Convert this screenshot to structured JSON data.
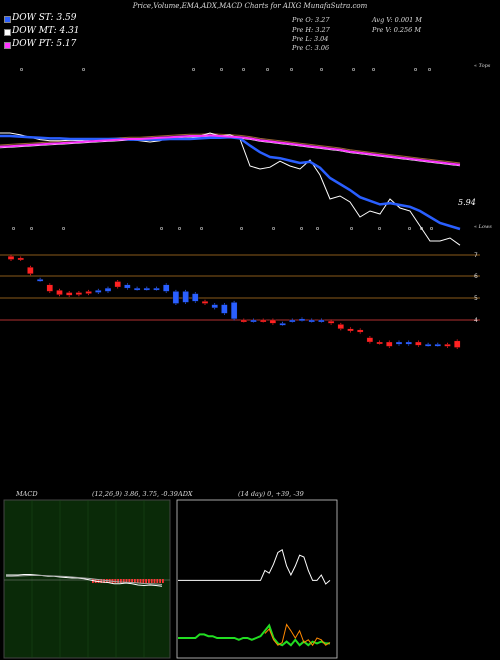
{
  "header": "Price,Volume,EMA,ADX,MACD Charts for AIXG MunafaSutra.com",
  "legend": [
    {
      "label": "DOW ST: 3.59",
      "color": "#2a5fff"
    },
    {
      "label": "DOW MT: 4.31",
      "color": "#ffffff"
    },
    {
      "label": "DOW PT: 5.17",
      "color": "#ff33ff"
    }
  ],
  "stats": {
    "prev_open": "Pre O: 3.27",
    "prev_high": "Pre H: 3.27",
    "prev_low": "Pre L: 3.04",
    "prev_close": "Pre C: 3.06",
    "avg_vol": "Avg V: 0.001 M",
    "prev_vol": "Pre V: 0.256 M"
  },
  "ema_panel": {
    "right_label_top": "« Tops",
    "right_label_bottom": "« Lows",
    "last_value": "5.94",
    "marker_glyph_top": "o",
    "marker_glyph_bottom": "o"
  },
  "macd": {
    "title": "MACD",
    "params": "(12,26,9) 3.86, 3.75, -0.39"
  },
  "adx": {
    "title": "ADX",
    "params": "(14 day) 0, +39, -39"
  },
  "chart_data": [
    {
      "type": "line",
      "title": "EMA",
      "x": [
        "1",
        "2",
        "3",
        "4",
        "5",
        "6",
        "7",
        "8",
        "9",
        "10",
        "11",
        "12",
        "13",
        "14",
        "15",
        "16",
        "17",
        "18",
        "19",
        "20",
        "21",
        "22",
        "23",
        "24",
        "25",
        "26",
        "27",
        "28",
        "29",
        "30",
        "31",
        "32",
        "33",
        "34",
        "35",
        "36",
        "37",
        "38",
        "39",
        "40",
        "41",
        "42",
        "43",
        "44",
        "45",
        "46",
        "47"
      ],
      "series": [
        {
          "name": "Price",
          "color": "#ffffff",
          "values": [
            6.55,
            6.55,
            6.52,
            6.48,
            6.44,
            6.42,
            6.42,
            6.43,
            6.42,
            6.44,
            6.45,
            6.42,
            6.46,
            6.44,
            6.42,
            6.4,
            6.42,
            6.48,
            6.45,
            6.45,
            6.5,
            6.55,
            6.5,
            6.52,
            6.45,
            6.0,
            5.95,
            5.98,
            6.08,
            6.0,
            5.95,
            6.1,
            5.85,
            5.45,
            5.5,
            5.4,
            5.15,
            5.25,
            5.2,
            5.45,
            5.3,
            5.25,
            5.0,
            4.75,
            4.75,
            4.8,
            4.68
          ]
        },
        {
          "name": "EMA short",
          "color": "#2a5fff",
          "values": [
            6.5,
            6.5,
            6.49,
            6.48,
            6.47,
            6.46,
            6.46,
            6.45,
            6.45,
            6.45,
            6.45,
            6.45,
            6.45,
            6.44,
            6.44,
            6.44,
            6.44,
            6.45,
            6.45,
            6.45,
            6.46,
            6.47,
            6.47,
            6.48,
            6.46,
            6.34,
            6.23,
            6.15,
            6.13,
            6.09,
            6.05,
            6.07,
            5.97,
            5.8,
            5.7,
            5.6,
            5.48,
            5.42,
            5.36,
            5.38,
            5.35,
            5.32,
            5.25,
            5.15,
            5.05,
            5.0,
            4.95
          ]
        },
        {
          "name": "EMA mid",
          "color": "#ff33ff",
          "values": [
            6.32,
            6.33,
            6.34,
            6.35,
            6.36,
            6.37,
            6.38,
            6.39,
            6.4,
            6.41,
            6.42,
            6.43,
            6.44,
            6.45,
            6.45,
            6.46,
            6.47,
            6.48,
            6.49,
            6.5,
            6.5,
            6.51,
            6.5,
            6.49,
            6.48,
            6.46,
            6.43,
            6.41,
            6.39,
            6.37,
            6.35,
            6.33,
            6.31,
            6.29,
            6.27,
            6.24,
            6.22,
            6.2,
            6.18,
            6.16,
            6.14,
            6.12,
            6.1,
            6.08,
            6.06,
            6.04,
            6.02
          ]
        }
      ]
    },
    {
      "type": "bar",
      "title": "Price candles",
      "yticks": [
        7,
        6,
        5,
        4
      ],
      "candles": [
        {
          "o": 6.9,
          "c": 6.75,
          "color": "#ff2222"
        },
        {
          "o": 6.75,
          "c": 6.82,
          "color": "#ff2222"
        },
        {
          "o": 6.4,
          "c": 6.1,
          "color": "#ff2222"
        },
        {
          "o": 5.85,
          "c": 5.8,
          "color": "#2a5fff"
        },
        {
          "o": 5.6,
          "c": 5.3,
          "color": "#ff2222"
        },
        {
          "o": 5.35,
          "c": 5.15,
          "color": "#ff2222"
        },
        {
          "o": 5.25,
          "c": 5.12,
          "color": "#ff2222"
        },
        {
          "o": 5.25,
          "c": 5.15,
          "color": "#ff2222"
        },
        {
          "o": 5.3,
          "c": 5.2,
          "color": "#ff2222"
        },
        {
          "o": 5.35,
          "c": 5.25,
          "color": "#2a5fff"
        },
        {
          "o": 5.45,
          "c": 5.3,
          "color": "#2a5fff"
        },
        {
          "o": 5.75,
          "c": 5.5,
          "color": "#ff2222"
        },
        {
          "o": 5.6,
          "c": 5.45,
          "color": "#2a5fff"
        },
        {
          "o": 5.45,
          "c": 5.4,
          "color": "#2a5fff"
        },
        {
          "o": 5.45,
          "c": 5.4,
          "color": "#2a5fff"
        },
        {
          "o": 5.45,
          "c": 5.4,
          "color": "#2a5fff"
        },
        {
          "o": 5.6,
          "c": 5.3,
          "color": "#2a5fff"
        },
        {
          "o": 5.3,
          "c": 4.75,
          "color": "#2a5fff"
        },
        {
          "o": 5.3,
          "c": 4.8,
          "color": "#2a5fff"
        },
        {
          "o": 5.2,
          "c": 4.85,
          "color": "#2a5fff"
        },
        {
          "o": 4.85,
          "c": 4.75,
          "color": "#ff2222"
        },
        {
          "o": 4.7,
          "c": 4.55,
          "color": "#2a5fff"
        },
        {
          "o": 4.7,
          "c": 4.3,
          "color": "#2a5fff"
        },
        {
          "o": 4.8,
          "c": 4.05,
          "color": "#2a5fff"
        },
        {
          "o": 4.0,
          "c": 3.95,
          "color": "#ff2222"
        },
        {
          "o": 4.0,
          "c": 3.95,
          "color": "#2a5fff"
        },
        {
          "o": 4.0,
          "c": 3.95,
          "color": "#ff2222"
        },
        {
          "o": 4.0,
          "c": 3.85,
          "color": "#ff2222"
        },
        {
          "o": 3.85,
          "c": 3.8,
          "color": "#2a5fff"
        },
        {
          "o": 4.0,
          "c": 3.95,
          "color": "#2a5fff"
        },
        {
          "o": 4.05,
          "c": 4.0,
          "color": "#2a5fff"
        },
        {
          "o": 4.0,
          "c": 3.95,
          "color": "#2a5fff"
        },
        {
          "o": 4.0,
          "c": 3.95,
          "color": "#2a5fff"
        },
        {
          "o": 3.95,
          "c": 3.85,
          "color": "#ff2222"
        },
        {
          "o": 3.8,
          "c": 3.6,
          "color": "#ff2222"
        },
        {
          "o": 3.6,
          "c": 3.5,
          "color": "#ff2222"
        },
        {
          "o": 3.55,
          "c": 3.45,
          "color": "#ff2222"
        },
        {
          "o": 3.2,
          "c": 3.0,
          "color": "#ff2222"
        },
        {
          "o": 3.0,
          "c": 2.95,
          "color": "#ff2222"
        },
        {
          "o": 3.0,
          "c": 2.8,
          "color": "#ff2222"
        },
        {
          "o": 3.0,
          "c": 2.9,
          "color": "#2a5fff"
        },
        {
          "o": 3.0,
          "c": 2.9,
          "color": "#2a5fff"
        },
        {
          "o": 3.0,
          "c": 2.85,
          "color": "#ff2222"
        },
        {
          "o": 2.9,
          "c": 2.85,
          "color": "#2a5fff"
        },
        {
          "o": 2.9,
          "c": 2.85,
          "color": "#2a5fff"
        },
        {
          "o": 2.9,
          "c": 2.8,
          "color": "#ff2222"
        },
        {
          "o": 3.05,
          "c": 2.75,
          "color": "#ff2222"
        }
      ]
    },
    {
      "type": "line",
      "title": "MACD",
      "series": [
        {
          "name": "MACD",
          "color": "#ffffff",
          "values": [
            0.2,
            0.2,
            0.2,
            0.22,
            0.22,
            0.2,
            0.18,
            0.15,
            0.15,
            0.12,
            0.1,
            0.08,
            0.08,
            0.05,
            0.0,
            -0.05,
            -0.08,
            -0.1,
            -0.15,
            -0.15,
            -0.12,
            -0.15,
            -0.2,
            -0.22,
            -0.2,
            -0.22,
            -0.25
          ]
        },
        {
          "name": "Signal",
          "color": "#aaaaaa",
          "values": [
            0.15,
            0.15,
            0.16,
            0.17,
            0.18,
            0.18,
            0.18,
            0.17,
            0.16,
            0.15,
            0.14,
            0.12,
            0.1,
            0.08,
            0.06,
            0.03,
            0.0,
            -0.03,
            -0.06,
            -0.08,
            -0.09,
            -0.1,
            -0.12,
            -0.14,
            -0.15,
            -0.16,
            -0.18
          ]
        }
      ]
    },
    {
      "type": "line",
      "title": "ADX",
      "series": [
        {
          "name": "+DI",
          "color": "#ffffff",
          "values": [
            44,
            44,
            44,
            44,
            44,
            44,
            44,
            44,
            44,
            44,
            44,
            44,
            44,
            44,
            44,
            44,
            44,
            44,
            44,
            44,
            55,
            52,
            62,
            75,
            78,
            60,
            50,
            60,
            72,
            70,
            55,
            44,
            44,
            50,
            40,
            44
          ]
        },
        {
          "name": "ADX",
          "color": "#22dd22",
          "values": [
            -20,
            -20,
            -20,
            -20,
            -20,
            -16,
            -16,
            -18,
            -18,
            -20,
            -20,
            -20,
            -20,
            -20,
            -22,
            -20,
            -20,
            -22,
            -20,
            -18,
            -12,
            -6,
            -20,
            -26,
            -28,
            -24,
            -28,
            -22,
            -28,
            -24,
            -28,
            -24,
            -26,
            -24,
            -26,
            -26
          ]
        },
        {
          "name": "-DI",
          "color": "#ff8800",
          "values": [
            null,
            null,
            null,
            null,
            null,
            null,
            null,
            null,
            null,
            null,
            null,
            null,
            null,
            null,
            null,
            null,
            null,
            null,
            null,
            null,
            -15,
            -10,
            -22,
            -28,
            -25,
            -5,
            -12,
            -20,
            -12,
            -25,
            -22,
            -28,
            -20,
            -22,
            -28,
            -25
          ]
        }
      ]
    }
  ]
}
